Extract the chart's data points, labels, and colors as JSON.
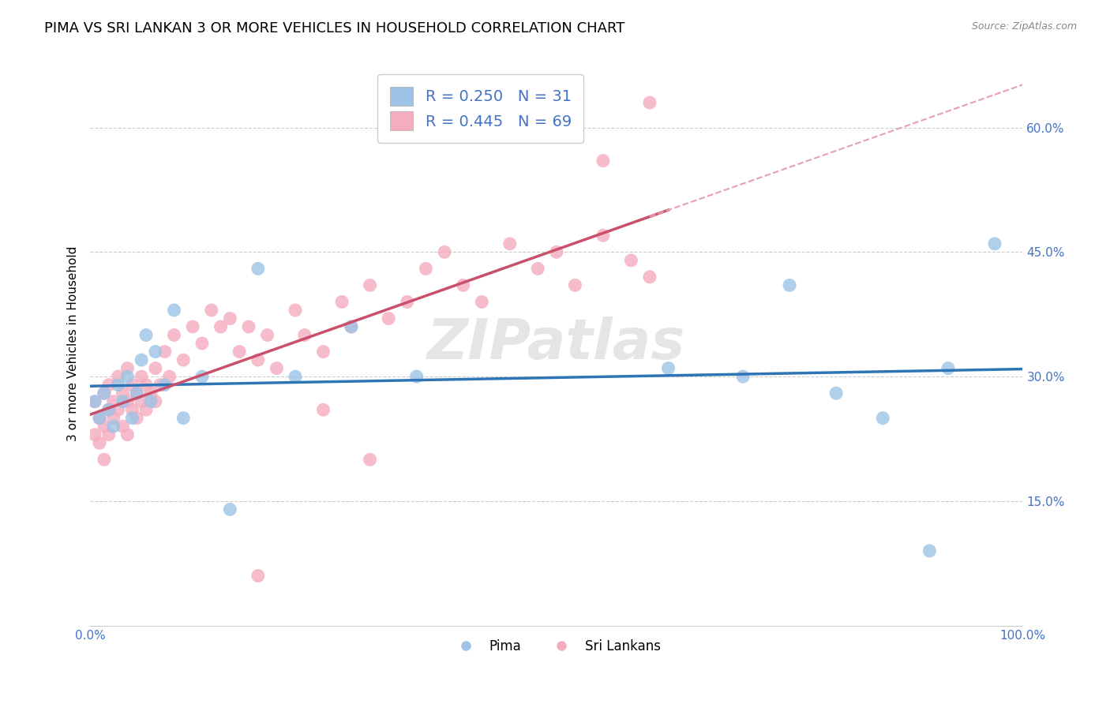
{
  "title": "PIMA VS SRI LANKAN 3 OR MORE VEHICLES IN HOUSEHOLD CORRELATION CHART",
  "source_text": "Source: ZipAtlas.com",
  "ylabel": "3 or more Vehicles in Household",
  "xlim": [
    0.0,
    1.0
  ],
  "ylim": [
    0.0,
    0.68
  ],
  "ytick_positions": [
    0.15,
    0.3,
    0.45,
    0.6
  ],
  "yticklabels": [
    "15.0%",
    "30.0%",
    "45.0%",
    "60.0%"
  ],
  "watermark": "ZIPatlas",
  "pima_color": "#9DC3E6",
  "sri_color": "#F4ACBE",
  "pima_line_color": "#2E75B6",
  "sri_line_color": "#C9506A",
  "pima_R": 0.25,
  "pima_N": 31,
  "sri_R": 0.445,
  "sri_N": 69,
  "legend_labels": [
    "Pima",
    "Sri Lankans"
  ],
  "title_fontsize": 13,
  "label_fontsize": 11,
  "tick_fontsize": 11,
  "pima_x": [
    0.005,
    0.01,
    0.015,
    0.02,
    0.025,
    0.03,
    0.035,
    0.04,
    0.045,
    0.05,
    0.055,
    0.06,
    0.065,
    0.07,
    0.08,
    0.09,
    0.1,
    0.12,
    0.15,
    0.18,
    0.22,
    0.28,
    0.35,
    0.62,
    0.7,
    0.75,
    0.8,
    0.85,
    0.9,
    0.92,
    0.97
  ],
  "pima_y": [
    0.27,
    0.25,
    0.28,
    0.26,
    0.24,
    0.29,
    0.27,
    0.3,
    0.25,
    0.28,
    0.32,
    0.35,
    0.27,
    0.33,
    0.29,
    0.38,
    0.25,
    0.3,
    0.14,
    0.43,
    0.3,
    0.36,
    0.3,
    0.31,
    0.3,
    0.41,
    0.28,
    0.25,
    0.09,
    0.31,
    0.46
  ],
  "sri_x": [
    0.005,
    0.005,
    0.01,
    0.01,
    0.015,
    0.015,
    0.015,
    0.02,
    0.02,
    0.02,
    0.025,
    0.025,
    0.03,
    0.03,
    0.035,
    0.035,
    0.04,
    0.04,
    0.04,
    0.045,
    0.045,
    0.05,
    0.05,
    0.055,
    0.055,
    0.06,
    0.06,
    0.065,
    0.07,
    0.07,
    0.075,
    0.08,
    0.085,
    0.09,
    0.1,
    0.11,
    0.12,
    0.13,
    0.14,
    0.15,
    0.16,
    0.17,
    0.18,
    0.19,
    0.2,
    0.22,
    0.23,
    0.25,
    0.27,
    0.28,
    0.3,
    0.32,
    0.34,
    0.36,
    0.38,
    0.4,
    0.42,
    0.45,
    0.48,
    0.5,
    0.52,
    0.55,
    0.58,
    0.6,
    0.18,
    0.25,
    0.3,
    0.55,
    0.6
  ],
  "sri_y": [
    0.27,
    0.23,
    0.25,
    0.22,
    0.28,
    0.24,
    0.2,
    0.26,
    0.29,
    0.23,
    0.27,
    0.25,
    0.3,
    0.26,
    0.28,
    0.24,
    0.31,
    0.27,
    0.23,
    0.29,
    0.26,
    0.28,
    0.25,
    0.3,
    0.27,
    0.29,
    0.26,
    0.28,
    0.31,
    0.27,
    0.29,
    0.33,
    0.3,
    0.35,
    0.32,
    0.36,
    0.34,
    0.38,
    0.36,
    0.37,
    0.33,
    0.36,
    0.32,
    0.35,
    0.31,
    0.38,
    0.35,
    0.33,
    0.39,
    0.36,
    0.41,
    0.37,
    0.39,
    0.43,
    0.45,
    0.41,
    0.39,
    0.46,
    0.43,
    0.45,
    0.41,
    0.47,
    0.44,
    0.42,
    0.06,
    0.26,
    0.2,
    0.56,
    0.63
  ],
  "background_color": "#FFFFFF",
  "grid_color": "#CCCCCC"
}
